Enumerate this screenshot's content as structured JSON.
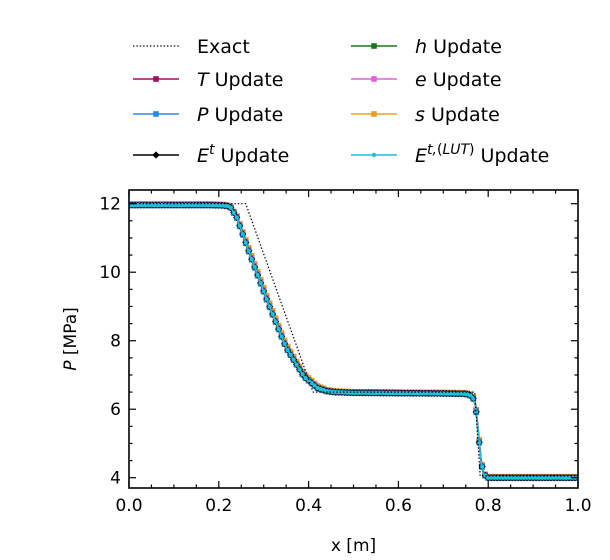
{
  "chart_data": {
    "type": "line",
    "title": "",
    "xlabel": "x [m]",
    "ylabel_var": "P",
    "ylabel_unit": "[MPa]",
    "xlim": [
      0.0,
      1.0
    ],
    "ylim": [
      3.7,
      12.4
    ],
    "xticks": [
      0.0,
      0.2,
      0.4,
      0.6,
      0.8,
      1.0
    ],
    "xtick_labels": [
      "0.0",
      "0.2",
      "0.4",
      "0.6",
      "0.8",
      "1.0"
    ],
    "yticks": [
      4,
      6,
      8,
      10,
      12
    ],
    "ytick_labels": [
      "4",
      "6",
      "8",
      "10",
      "12"
    ],
    "grid": false,
    "legend": {
      "placement": "top",
      "columns": 2
    },
    "series": [
      {
        "key": "exact",
        "legend_var": "",
        "legend_sup": "",
        "legend_text": "Exact",
        "color": "#000000",
        "style": "dotted",
        "marker": "none",
        "x": [
          0.0,
          0.26,
          0.41,
          0.77,
          0.782,
          1.0
        ],
        "y": [
          12.0,
          12.0,
          6.5,
          6.5,
          4.05,
          4.05
        ]
      },
      {
        "key": "h",
        "legend_var": "h",
        "legend_sup": "",
        "legend_text": " Update",
        "color": "#1a7a1a",
        "style": "solid",
        "marker": "square",
        "x": [
          0.0,
          0.18,
          0.21,
          0.225,
          0.24,
          0.27,
          0.31,
          0.35,
          0.39,
          0.42,
          0.44,
          0.46,
          0.5,
          0.6,
          0.7,
          0.75,
          0.765,
          0.772,
          0.778,
          0.784,
          0.79,
          0.8,
          0.83,
          0.9,
          1.0
        ],
        "y": [
          11.96,
          11.96,
          11.95,
          11.92,
          11.6,
          10.5,
          9.1,
          7.8,
          6.95,
          6.62,
          6.53,
          6.5,
          6.48,
          6.47,
          6.46,
          6.45,
          6.38,
          6.1,
          5.3,
          4.5,
          4.1,
          4.0,
          4.0,
          4.0,
          4.0
        ]
      },
      {
        "key": "T",
        "legend_var": "T",
        "legend_sup": "",
        "legend_text": " Update",
        "color": "#a01060",
        "style": "solid",
        "marker": "square",
        "x": [
          0.0,
          0.18,
          0.21,
          0.225,
          0.24,
          0.27,
          0.31,
          0.35,
          0.39,
          0.42,
          0.44,
          0.46,
          0.5,
          0.6,
          0.7,
          0.75,
          0.765,
          0.772,
          0.778,
          0.784,
          0.79,
          0.8,
          0.83,
          0.9,
          1.0
        ],
        "y": [
          11.97,
          11.97,
          11.96,
          11.93,
          11.62,
          10.52,
          9.12,
          7.82,
          6.97,
          6.63,
          6.54,
          6.51,
          6.49,
          6.48,
          6.47,
          6.46,
          6.39,
          6.12,
          5.32,
          4.52,
          4.12,
          4.01,
          4.01,
          4.01,
          4.01
        ]
      },
      {
        "key": "e",
        "legend_var": "e",
        "legend_sup": "",
        "legend_text": " Update",
        "color": "#e060e0",
        "style": "solid",
        "marker": "square",
        "x": [
          0.0,
          0.18,
          0.21,
          0.225,
          0.24,
          0.27,
          0.31,
          0.35,
          0.39,
          0.42,
          0.44,
          0.46,
          0.5,
          0.6,
          0.7,
          0.75,
          0.765,
          0.772,
          0.778,
          0.784,
          0.79,
          0.8,
          0.83,
          0.9,
          1.0
        ],
        "y": [
          11.96,
          11.96,
          11.95,
          11.92,
          11.61,
          10.51,
          9.11,
          7.81,
          6.96,
          6.62,
          6.53,
          6.5,
          6.48,
          6.47,
          6.46,
          6.45,
          6.38,
          6.11,
          5.31,
          4.51,
          4.11,
          4.0,
          4.0,
          4.0,
          4.0
        ]
      },
      {
        "key": "P",
        "legend_var": "P",
        "legend_sup": "",
        "legend_text": " Update",
        "color": "#2a8ae0",
        "style": "solid",
        "marker": "square",
        "x": [
          0.0,
          0.18,
          0.21,
          0.225,
          0.24,
          0.27,
          0.31,
          0.35,
          0.39,
          0.42,
          0.44,
          0.46,
          0.5,
          0.6,
          0.7,
          0.75,
          0.765,
          0.772,
          0.778,
          0.784,
          0.79,
          0.8,
          0.83,
          0.9,
          1.0
        ],
        "y": [
          11.95,
          11.95,
          11.94,
          11.91,
          11.58,
          10.48,
          9.08,
          7.79,
          6.94,
          6.61,
          6.52,
          6.49,
          6.47,
          6.46,
          6.45,
          6.44,
          6.37,
          6.09,
          5.29,
          4.49,
          4.09,
          3.99,
          3.99,
          3.99,
          3.99
        ]
      },
      {
        "key": "s",
        "legend_var": "s",
        "legend_sup": "",
        "legend_text": " Update",
        "color": "#e8a020",
        "style": "solid",
        "marker": "square",
        "x": [
          0.0,
          0.18,
          0.21,
          0.225,
          0.24,
          0.27,
          0.31,
          0.35,
          0.39,
          0.42,
          0.44,
          0.46,
          0.5,
          0.6,
          0.7,
          0.75,
          0.765,
          0.772,
          0.778,
          0.784,
          0.79,
          0.8,
          0.83,
          0.9,
          1.0
        ],
        "y": [
          11.99,
          11.99,
          11.98,
          11.94,
          11.64,
          10.6,
          9.2,
          7.9,
          7.03,
          6.68,
          6.57,
          6.53,
          6.51,
          6.5,
          6.49,
          6.48,
          6.42,
          6.16,
          5.38,
          4.56,
          4.14,
          4.03,
          4.03,
          4.03,
          4.03
        ]
      },
      {
        "key": "Et",
        "legend_var": "E",
        "legend_sup": "t",
        "legend_text": " Update",
        "color": "#000000",
        "style": "solid",
        "marker": "diamond",
        "x": [
          0.0,
          0.18,
          0.21,
          0.225,
          0.24,
          0.27,
          0.31,
          0.35,
          0.39,
          0.42,
          0.44,
          0.46,
          0.5,
          0.6,
          0.7,
          0.75,
          0.765,
          0.772,
          0.778,
          0.784,
          0.79,
          0.8,
          0.83,
          0.9,
          1.0
        ],
        "y": [
          11.96,
          11.96,
          11.95,
          11.92,
          11.6,
          10.5,
          9.1,
          7.8,
          6.95,
          6.62,
          6.53,
          6.5,
          6.48,
          6.47,
          6.46,
          6.45,
          6.38,
          6.1,
          5.3,
          4.5,
          4.1,
          4.0,
          4.0,
          4.0,
          4.0
        ]
      },
      {
        "key": "EtLUT",
        "legend_var": "E",
        "legend_sup": "t,(LUT)",
        "legend_text": " Update",
        "color": "#20c0d8",
        "style": "solid",
        "marker": "dot",
        "x": [
          0.0,
          0.18,
          0.21,
          0.225,
          0.24,
          0.27,
          0.31,
          0.35,
          0.39,
          0.42,
          0.44,
          0.46,
          0.5,
          0.6,
          0.7,
          0.75,
          0.765,
          0.772,
          0.778,
          0.784,
          0.79,
          0.8,
          0.83,
          0.9,
          1.0
        ],
        "y": [
          11.96,
          11.96,
          11.95,
          11.92,
          11.6,
          10.5,
          9.1,
          7.8,
          6.95,
          6.62,
          6.53,
          6.5,
          6.48,
          6.47,
          6.46,
          6.45,
          6.38,
          6.1,
          5.3,
          4.5,
          4.1,
          4.0,
          4.0,
          4.0,
          4.0
        ]
      }
    ]
  }
}
